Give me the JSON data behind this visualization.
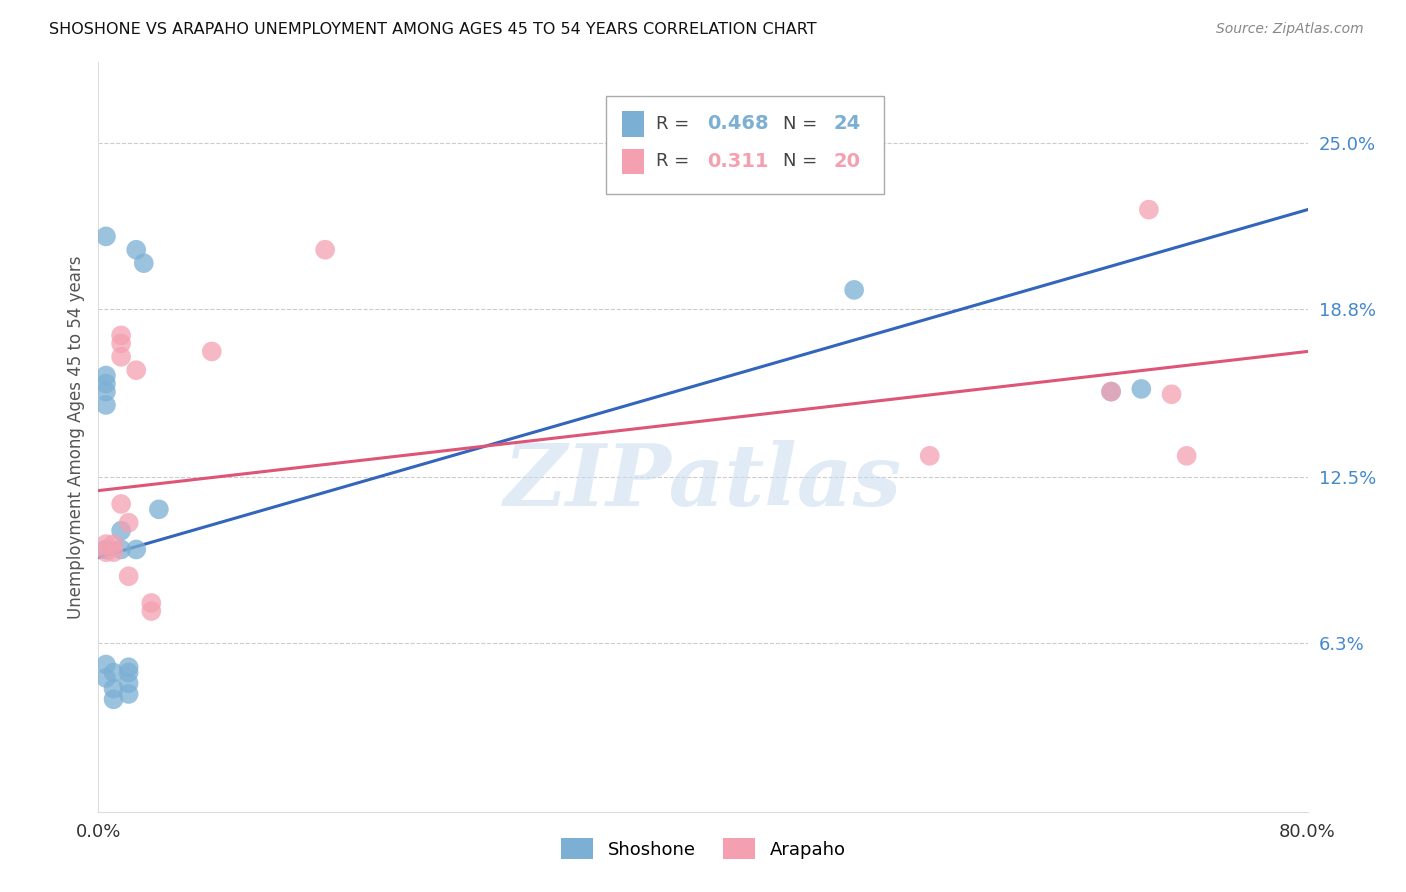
{
  "title": "SHOSHONE VS ARAPAHO UNEMPLOYMENT AMONG AGES 45 TO 54 YEARS CORRELATION CHART",
  "source": "Source: ZipAtlas.com",
  "ylabel": "Unemployment Among Ages 45 to 54 years",
  "xlim": [
    0.0,
    0.8
  ],
  "ylim": [
    0.0,
    0.28
  ],
  "x_ticks": [
    0.0,
    0.1,
    0.2,
    0.3,
    0.4,
    0.5,
    0.6,
    0.7,
    0.8
  ],
  "x_tick_labels": [
    "0.0%",
    "",
    "",
    "",
    "",
    "",
    "",
    "",
    "80.0%"
  ],
  "y_ticks_right": [
    0.25,
    0.188,
    0.125,
    0.063
  ],
  "y_tick_labels_right": [
    "25.0%",
    "18.8%",
    "12.5%",
    "6.3%"
  ],
  "shoshone_R": 0.468,
  "shoshone_N": 24,
  "arapaho_R": 0.311,
  "arapaho_N": 20,
  "shoshone_color": "#7BAFD4",
  "arapaho_color": "#F4A0B0",
  "shoshone_line_color": "#3366BB",
  "arapaho_line_color": "#DD5577",
  "watermark_text": "ZIPatlas",
  "shoshone_x": [
    0.005,
    0.015,
    0.025,
    0.04,
    0.005,
    0.005,
    0.01,
    0.01,
    0.01,
    0.015,
    0.02,
    0.02,
    0.02,
    0.02,
    0.025,
    0.03,
    0.005,
    0.005,
    0.005,
    0.005,
    0.005,
    0.5,
    0.67,
    0.69
  ],
  "shoshone_y": [
    0.098,
    0.098,
    0.098,
    0.113,
    0.055,
    0.05,
    0.052,
    0.046,
    0.042,
    0.105,
    0.054,
    0.052,
    0.048,
    0.044,
    0.21,
    0.205,
    0.215,
    0.152,
    0.157,
    0.16,
    0.163,
    0.195,
    0.157,
    0.158
  ],
  "arapaho_x": [
    0.005,
    0.005,
    0.01,
    0.01,
    0.015,
    0.015,
    0.015,
    0.015,
    0.02,
    0.02,
    0.025,
    0.035,
    0.035,
    0.075,
    0.15,
    0.55,
    0.67,
    0.695,
    0.71,
    0.72
  ],
  "arapaho_y": [
    0.097,
    0.1,
    0.097,
    0.1,
    0.178,
    0.175,
    0.17,
    0.115,
    0.108,
    0.088,
    0.165,
    0.078,
    0.075,
    0.172,
    0.21,
    0.133,
    0.157,
    0.225,
    0.156,
    0.133
  ],
  "shoshone_line": [
    0.0,
    0.8,
    0.095,
    0.225
  ],
  "arapaho_line": [
    0.0,
    0.8,
    0.12,
    0.172
  ]
}
